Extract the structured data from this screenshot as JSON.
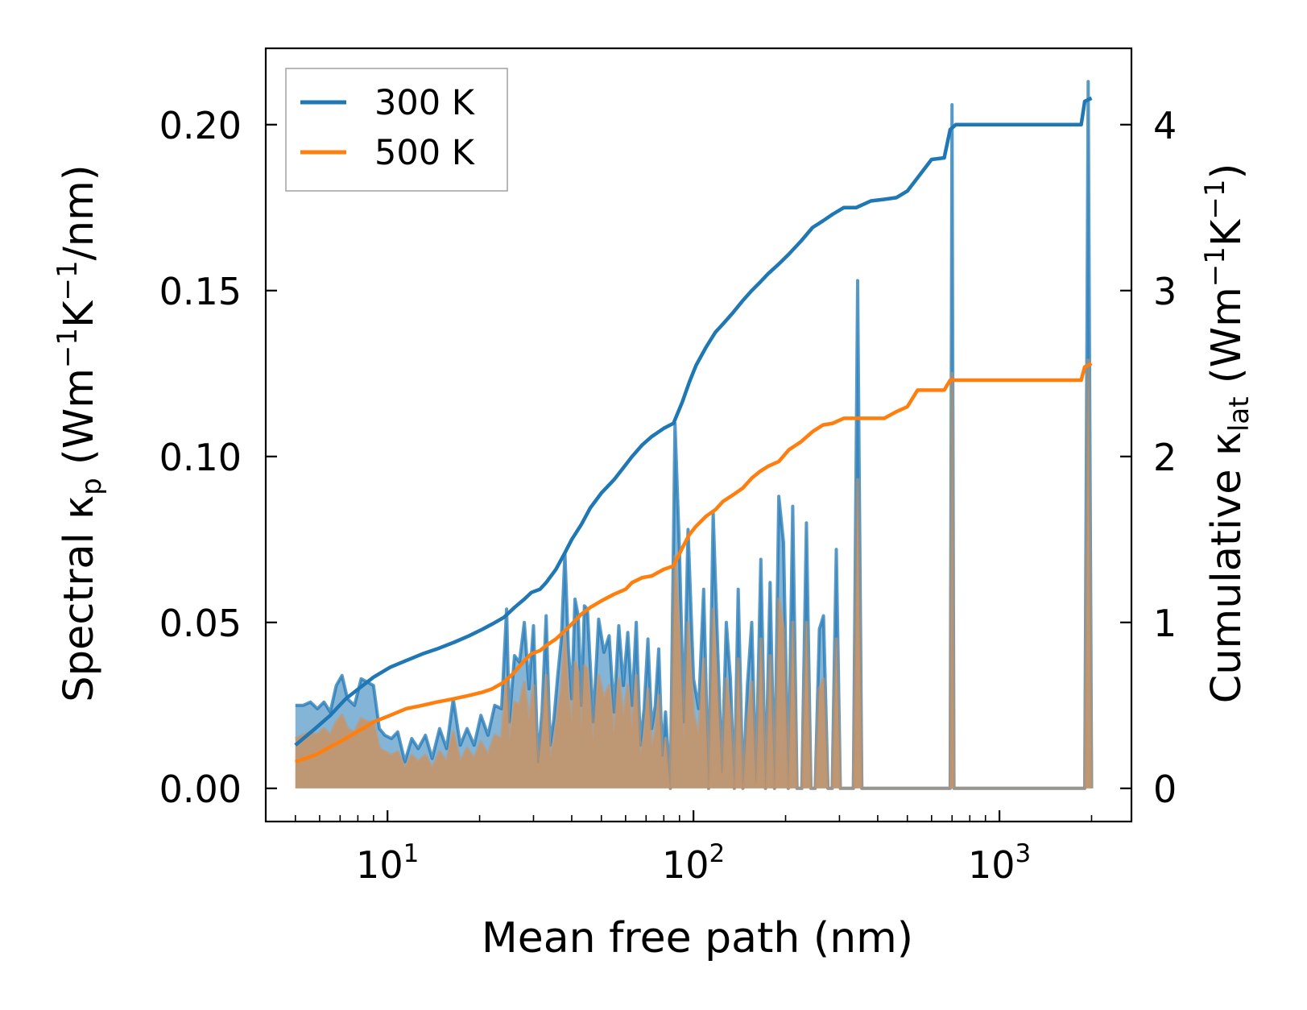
{
  "chart_data": {
    "type": "line",
    "xlabel": "Mean free path (nm)",
    "xscale": "log",
    "xlim": [
      4,
      2700
    ],
    "x_ticks": [
      {
        "value": 10,
        "base": "10",
        "exp": "1"
      },
      {
        "value": 100,
        "base": "10",
        "exp": "2"
      },
      {
        "value": 1000,
        "base": "10",
        "exp": "3"
      }
    ],
    "ylabel_left": {
      "prefix": "Spectral κ",
      "sub": "p",
      "unit_a": " (Wm",
      "sup1": "−1",
      "unit_b": "K",
      "sup2": "−1",
      "unit_c": "/nm)"
    },
    "ylabel_right": {
      "prefix": "Cumulative κ",
      "sub": "lat",
      "unit_a": " (Wm",
      "sup1": "−1",
      "unit_b": "K",
      "sup2": "−1",
      "unit_c": ")"
    },
    "ylim_left": [
      -0.01,
      0.223
    ],
    "ylim_right": [
      -0.2,
      4.46
    ],
    "yticks_left": [
      "0.00",
      "0.05",
      "0.10",
      "0.15",
      "0.20"
    ],
    "yticks_right": [
      "0",
      "1",
      "2",
      "3",
      "4"
    ],
    "legend": {
      "position": "top-left",
      "entries": [
        "300 K",
        "500 K"
      ]
    },
    "colors": {
      "300 K": "#1f77b4",
      "500 K": "#ff7f0e",
      "fill_500": "#c4956a"
    },
    "series": [
      {
        "name": "300 K",
        "kind": "cumulative",
        "axis": "right",
        "x": [
          5.0,
          5.8,
          6.5,
          7.3,
          8.3,
          9.0,
          10.2,
          11.5,
          13.0,
          14.5,
          16.5,
          18.5,
          20.5,
          22.0,
          24.0,
          26.0,
          28.0,
          29.5,
          31.5,
          33.0,
          35.5,
          38.0,
          40.0,
          43.0,
          46.0,
          50.0,
          55.0,
          60.0,
          63.0,
          68.0,
          73.0,
          80.0,
          86.0,
          92.0,
          97.0,
          102.0,
          110.0,
          118.0,
          125.0,
          135.0,
          145.0,
          155.0,
          165.0,
          175.0,
          190.0,
          205.0,
          225.0,
          245.0,
          265.0,
          285.0,
          310.0,
          340.0,
          380.0,
          420.0,
          460.0,
          500.0,
          540.0,
          600.0,
          660.0,
          690.0,
          720.0,
          1300.0,
          1850.0,
          1900.0,
          2000.0
        ],
        "values": [
          0.26,
          0.36,
          0.44,
          0.54,
          0.62,
          0.67,
          0.73,
          0.77,
          0.81,
          0.84,
          0.88,
          0.92,
          0.96,
          0.99,
          1.03,
          1.09,
          1.14,
          1.18,
          1.2,
          1.24,
          1.32,
          1.42,
          1.5,
          1.59,
          1.69,
          1.78,
          1.86,
          1.95,
          2.0,
          2.07,
          2.12,
          2.17,
          2.2,
          2.33,
          2.45,
          2.55,
          2.66,
          2.75,
          2.8,
          2.87,
          2.94,
          3.0,
          3.05,
          3.1,
          3.16,
          3.22,
          3.3,
          3.38,
          3.42,
          3.46,
          3.5,
          3.5,
          3.54,
          3.55,
          3.56,
          3.6,
          3.68,
          3.79,
          3.8,
          3.97,
          4.0,
          4.0,
          4.0,
          4.14,
          4.16
        ]
      },
      {
        "name": "500 K",
        "kind": "cumulative",
        "axis": "right",
        "x": [
          5.0,
          5.8,
          6.5,
          7.3,
          8.3,
          9.0,
          10.2,
          11.5,
          13.0,
          14.5,
          16.5,
          18.5,
          20.5,
          22.0,
          24.0,
          26.0,
          28.0,
          29.5,
          31.5,
          33.0,
          35.5,
          38.0,
          40.0,
          43.0,
          46.0,
          50.0,
          55.0,
          60.0,
          63.0,
          68.0,
          73.0,
          80.0,
          86.0,
          92.0,
          97.0,
          102.0,
          110.0,
          118.0,
          125.0,
          135.0,
          145.0,
          155.0,
          165.0,
          175.0,
          190.0,
          205.0,
          225.0,
          245.0,
          265.0,
          285.0,
          310.0,
          340.0,
          380.0,
          420.0,
          460.0,
          500.0,
          540.0,
          600.0,
          660.0,
          690.0,
          720.0,
          1300.0,
          1850.0,
          1900.0,
          2000.0
        ],
        "values": [
          0.16,
          0.2,
          0.25,
          0.3,
          0.36,
          0.4,
          0.44,
          0.48,
          0.5,
          0.52,
          0.54,
          0.56,
          0.58,
          0.6,
          0.64,
          0.7,
          0.77,
          0.81,
          0.83,
          0.86,
          0.9,
          0.95,
          0.99,
          1.05,
          1.09,
          1.13,
          1.17,
          1.2,
          1.24,
          1.27,
          1.28,
          1.32,
          1.34,
          1.45,
          1.53,
          1.58,
          1.64,
          1.68,
          1.73,
          1.77,
          1.81,
          1.87,
          1.91,
          1.94,
          1.97,
          2.04,
          2.09,
          2.15,
          2.19,
          2.2,
          2.23,
          2.23,
          2.23,
          2.23,
          2.27,
          2.3,
          2.4,
          2.4,
          2.4,
          2.46,
          2.46,
          2.46,
          2.46,
          2.54,
          2.56
        ]
      },
      {
        "name": "300 K",
        "kind": "spectral",
        "axis": "left",
        "x": [
          5.0,
          5.3,
          5.6,
          5.9,
          6.2,
          6.5,
          6.8,
          7.1,
          7.4,
          7.8,
          8.2,
          8.6,
          9.0,
          9.4,
          9.8,
          10.3,
          10.8,
          11.4,
          12.0,
          12.6,
          13.3,
          14.0,
          14.8,
          15.6,
          16.4,
          17.3,
          18.2,
          19.2,
          20.2,
          21.3,
          22.4,
          23.6,
          24.5,
          25.0,
          26.0,
          27.0,
          28.0,
          29.0,
          30.0,
          31.0,
          32.0,
          33.0,
          34.0,
          35.0,
          36.0,
          37.0,
          38.0,
          39.0,
          40.0,
          41.0,
          42.0,
          43.0,
          44.0,
          45.0,
          47.0,
          49.0,
          51.0,
          53.0,
          55.0,
          57.0,
          59.0,
          61.0,
          63.0,
          65.0,
          67.0,
          69.0,
          71.0,
          73.0,
          75.0,
          77.0,
          79.0,
          81.0,
          84.0,
          87.0,
          90.0,
          93.0,
          96.0,
          100.0,
          104.0,
          108.0,
          112.0,
          116.0,
          120.0,
          124.0,
          128.0,
          132.0,
          136.0,
          140.0,
          145.0,
          150.0,
          155.0,
          160.0,
          166.0,
          172.0,
          178.0,
          184.0,
          190.0,
          197.0,
          204.0,
          211.0,
          218.0,
          226.0,
          234.0,
          242.0,
          250.0,
          258.0,
          266.0,
          275.0,
          284.0,
          293.0,
          302.0,
          312.0,
          322.0,
          333.0,
          344.0,
          355.0,
          367.0,
          379.0,
          391.0,
          404.0,
          417.0,
          430.0,
          444.0,
          458.0,
          473.0,
          488.0,
          504.0,
          520.0,
          537.0,
          554.0,
          572.0,
          590.0,
          609.0,
          628.0,
          648.0,
          669.0,
          680.0,
          690.0,
          700.0,
          710.0,
          720.0,
          1300.0,
          1850.0,
          1900.0,
          1950.0,
          2000.0
        ],
        "values": [
          0.025,
          0.025,
          0.026,
          0.024,
          0.026,
          0.023,
          0.031,
          0.034,
          0.027,
          0.025,
          0.033,
          0.032,
          0.031,
          0.018,
          0.016,
          0.015,
          0.017,
          0.008,
          0.015,
          0.012,
          0.016,
          0.009,
          0.018,
          0.012,
          0.027,
          0.013,
          0.018,
          0.013,
          0.022,
          0.016,
          0.025,
          0.024,
          0.054,
          0.02,
          0.04,
          0.038,
          0.05,
          0.03,
          0.049,
          0.008,
          0.023,
          0.052,
          0.013,
          0.021,
          0.034,
          0.045,
          0.071,
          0.042,
          0.027,
          0.057,
          0.052,
          0.025,
          0.055,
          0.054,
          0.02,
          0.051,
          0.041,
          0.046,
          0.023,
          0.049,
          0.031,
          0.047,
          0.025,
          0.05,
          0.013,
          0.024,
          0.045,
          0.018,
          0.025,
          0.042,
          0.01,
          0.023,
          0.0,
          0.11,
          0.071,
          0.02,
          0.078,
          0.033,
          0.024,
          0.06,
          0.0,
          0.083,
          0.042,
          0.005,
          0.05,
          0.033,
          0.0,
          0.06,
          0.0,
          0.031,
          0.05,
          0.002,
          0.069,
          0.0,
          0.062,
          0.0,
          0.088,
          0.074,
          0.0,
          0.085,
          0.0,
          0.0,
          0.08,
          0.0,
          0.0,
          0.048,
          0.052,
          0.0,
          0.0,
          0.072,
          0.0,
          0.0,
          0.0,
          0.0,
          0.153,
          0.0,
          0.0,
          0.0,
          0.0,
          0.0,
          0.0,
          0.0,
          0.0,
          0.0,
          0.0,
          0.0,
          0.0,
          0.0,
          0.0,
          0.0,
          0.0,
          0.0,
          0.0,
          0.0,
          0.0,
          0.0,
          0.0,
          0.0,
          0.206,
          0.0,
          0.0,
          0.0,
          0.0,
          0.0,
          0.213,
          0.0
        ]
      },
      {
        "name": "500 K",
        "kind": "spectral",
        "axis": "left",
        "x": [
          5.0,
          5.3,
          5.6,
          5.9,
          6.2,
          6.5,
          6.8,
          7.1,
          7.4,
          7.8,
          8.2,
          8.6,
          9.0,
          9.4,
          9.8,
          10.3,
          10.8,
          11.4,
          12.0,
          12.6,
          13.3,
          14.0,
          14.8,
          15.6,
          16.4,
          17.3,
          18.2,
          19.2,
          20.2,
          21.3,
          22.4,
          23.6,
          24.5,
          25.0,
          26.0,
          27.0,
          28.0,
          29.0,
          30.0,
          31.0,
          32.0,
          33.0,
          34.0,
          35.0,
          36.0,
          37.0,
          38.0,
          39.0,
          40.0,
          41.0,
          42.0,
          43.0,
          44.0,
          45.0,
          47.0,
          49.0,
          51.0,
          53.0,
          55.0,
          57.0,
          59.0,
          61.0,
          63.0,
          65.0,
          67.0,
          69.0,
          71.0,
          73.0,
          75.0,
          77.0,
          79.0,
          81.0,
          84.0,
          87.0,
          90.0,
          93.0,
          96.0,
          100.0,
          104.0,
          108.0,
          112.0,
          116.0,
          120.0,
          124.0,
          128.0,
          132.0,
          136.0,
          140.0,
          145.0,
          150.0,
          155.0,
          160.0,
          166.0,
          172.0,
          178.0,
          184.0,
          190.0,
          197.0,
          204.0,
          211.0,
          218.0,
          226.0,
          234.0,
          242.0,
          250.0,
          258.0,
          266.0,
          275.0,
          284.0,
          293.0,
          302.0,
          312.0,
          322.0,
          333.0,
          344.0,
          355.0,
          367.0,
          379.0,
          391.0,
          404.0,
          417.0,
          430.0,
          444.0,
          458.0,
          473.0,
          488.0,
          504.0,
          520.0,
          537.0,
          554.0,
          572.0,
          590.0,
          609.0,
          628.0,
          648.0,
          669.0,
          680.0,
          690.0,
          700.0,
          710.0,
          720.0,
          1300.0,
          1850.0,
          1900.0,
          1950.0,
          2000.0
        ],
        "values": [
          0.015,
          0.016,
          0.017,
          0.016,
          0.018,
          0.016,
          0.02,
          0.022,
          0.018,
          0.017,
          0.021,
          0.02,
          0.02,
          0.012,
          0.011,
          0.01,
          0.011,
          0.006,
          0.01,
          0.008,
          0.01,
          0.006,
          0.011,
          0.008,
          0.017,
          0.008,
          0.012,
          0.009,
          0.014,
          0.01,
          0.016,
          0.015,
          0.033,
          0.013,
          0.026,
          0.025,
          0.032,
          0.02,
          0.031,
          0.006,
          0.016,
          0.034,
          0.009,
          0.014,
          0.023,
          0.03,
          0.046,
          0.028,
          0.019,
          0.038,
          0.035,
          0.017,
          0.037,
          0.036,
          0.014,
          0.034,
          0.027,
          0.031,
          0.016,
          0.033,
          0.021,
          0.031,
          0.017,
          0.034,
          0.009,
          0.016,
          0.03,
          0.012,
          0.017,
          0.028,
          0.007,
          0.015,
          0.0,
          0.07,
          0.046,
          0.013,
          0.05,
          0.022,
          0.016,
          0.039,
          0.0,
          0.054,
          0.028,
          0.003,
          0.033,
          0.022,
          0.0,
          0.039,
          0.0,
          0.02,
          0.032,
          0.001,
          0.045,
          0.0,
          0.04,
          0.0,
          0.057,
          0.048,
          0.0,
          0.05,
          0.0,
          0.0,
          0.05,
          0.0,
          0.0,
          0.03,
          0.033,
          0.0,
          0.0,
          0.045,
          0.0,
          0.0,
          0.0,
          0.0,
          0.093,
          0.0,
          0.0,
          0.0,
          0.0,
          0.0,
          0.0,
          0.0,
          0.0,
          0.0,
          0.0,
          0.0,
          0.0,
          0.0,
          0.0,
          0.0,
          0.0,
          0.0,
          0.0,
          0.0,
          0.0,
          0.0,
          0.0,
          0.0,
          0.125,
          0.0,
          0.0,
          0.0,
          0.0,
          0.0,
          0.129,
          0.0
        ]
      }
    ]
  }
}
